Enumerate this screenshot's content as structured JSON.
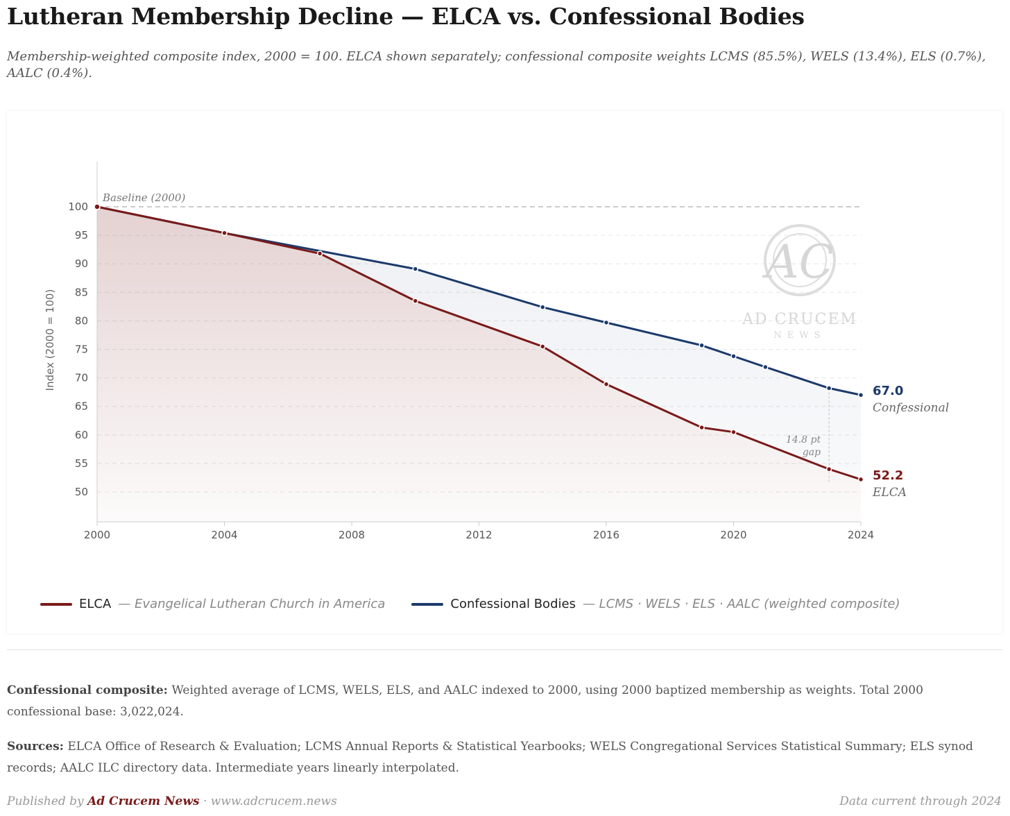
{
  "title": "Lutheran Membership Decline — ELCA vs. Confessional Bodies",
  "subtitle": "Membership-weighted composite index, 2000 = 100. ELCA shown separately; confessional composite weights LCMS (85.5%), WELS (13.4%), ELS (0.7%), AALC (0.4%).",
  "colors": {
    "elca": "#7a1a1a",
    "confessional": "#1c3a6b"
  },
  "chart_data": {
    "type": "line",
    "title": "Lutheran Membership Decline — ELCA vs. Confessional Bodies",
    "xlabel": "",
    "ylabel": "Index (2000 = 100)",
    "xlim": [
      2000,
      2024
    ],
    "ylim": [
      45,
      110
    ],
    "xticks": [
      "2000",
      "2004",
      "2008",
      "2012",
      "2016",
      "2020",
      "2024"
    ],
    "yticks": [
      "100",
      "95",
      "90",
      "85",
      "80",
      "75",
      "70",
      "65",
      "60",
      "55",
      "50"
    ],
    "grid": true,
    "series": [
      {
        "name": "ELCA",
        "x": [
          2000,
          2004,
          2007,
          2010,
          2014,
          2016,
          2019,
          2020,
          2023,
          2024
        ],
        "values": [
          100,
          95.4,
          91.8,
          83.5,
          75.5,
          68.9,
          61.3,
          60.5,
          54.0,
          52.2
        ]
      },
      {
        "name": "Confessional Bodies",
        "x": [
          2000,
          2004,
          2010,
          2014,
          2016,
          2019,
          2020,
          2021,
          2023,
          2024
        ],
        "values": [
          100,
          95.4,
          89.1,
          82.4,
          79.7,
          75.7,
          73.8,
          71.9,
          68.2,
          67.0
        ]
      }
    ],
    "annotations": {
      "baseline": "Baseline (2000)",
      "gap_line1": "14.8 pt",
      "gap_line2": "gap",
      "gap_year": 2023,
      "end_conf_value": "67.0",
      "end_conf_label": "Confessional",
      "end_elca_value": "52.2",
      "end_elca_label": "ELCA"
    },
    "legend": [
      {
        "name": "ELCA",
        "desc": "— Evangelical Lutheran Church in America"
      },
      {
        "name": "Confessional Bodies",
        "desc": "— LCMS · WELS · ELS · AALC (weighted composite)"
      }
    ],
    "legend_position": "bottom"
  },
  "watermark": {
    "line1": "AD CRUCEM",
    "line2": "NEWS"
  },
  "notes": {
    "composite_label": "Confessional composite:",
    "composite_text": " Weighted average of LCMS, WELS, ELS, and AALC indexed to 2000, using 2000 baptized membership as weights. Total 2000 confessional base: 3,022,024.",
    "sources_label": "Sources:",
    "sources_text": " ELCA Office of Research & Evaluation; LCMS Annual Reports & Statistical Yearbooks; WELS Congregational Services Statistical Summary; ELS synod records; AALC ILC directory data. Intermediate years linearly interpolated."
  },
  "footer": {
    "published_by": "Published by ",
    "brand": "Ad Crucem News",
    "sep": " · ",
    "url": "www.adcrucem.news",
    "data_current": "Data current through 2024"
  }
}
